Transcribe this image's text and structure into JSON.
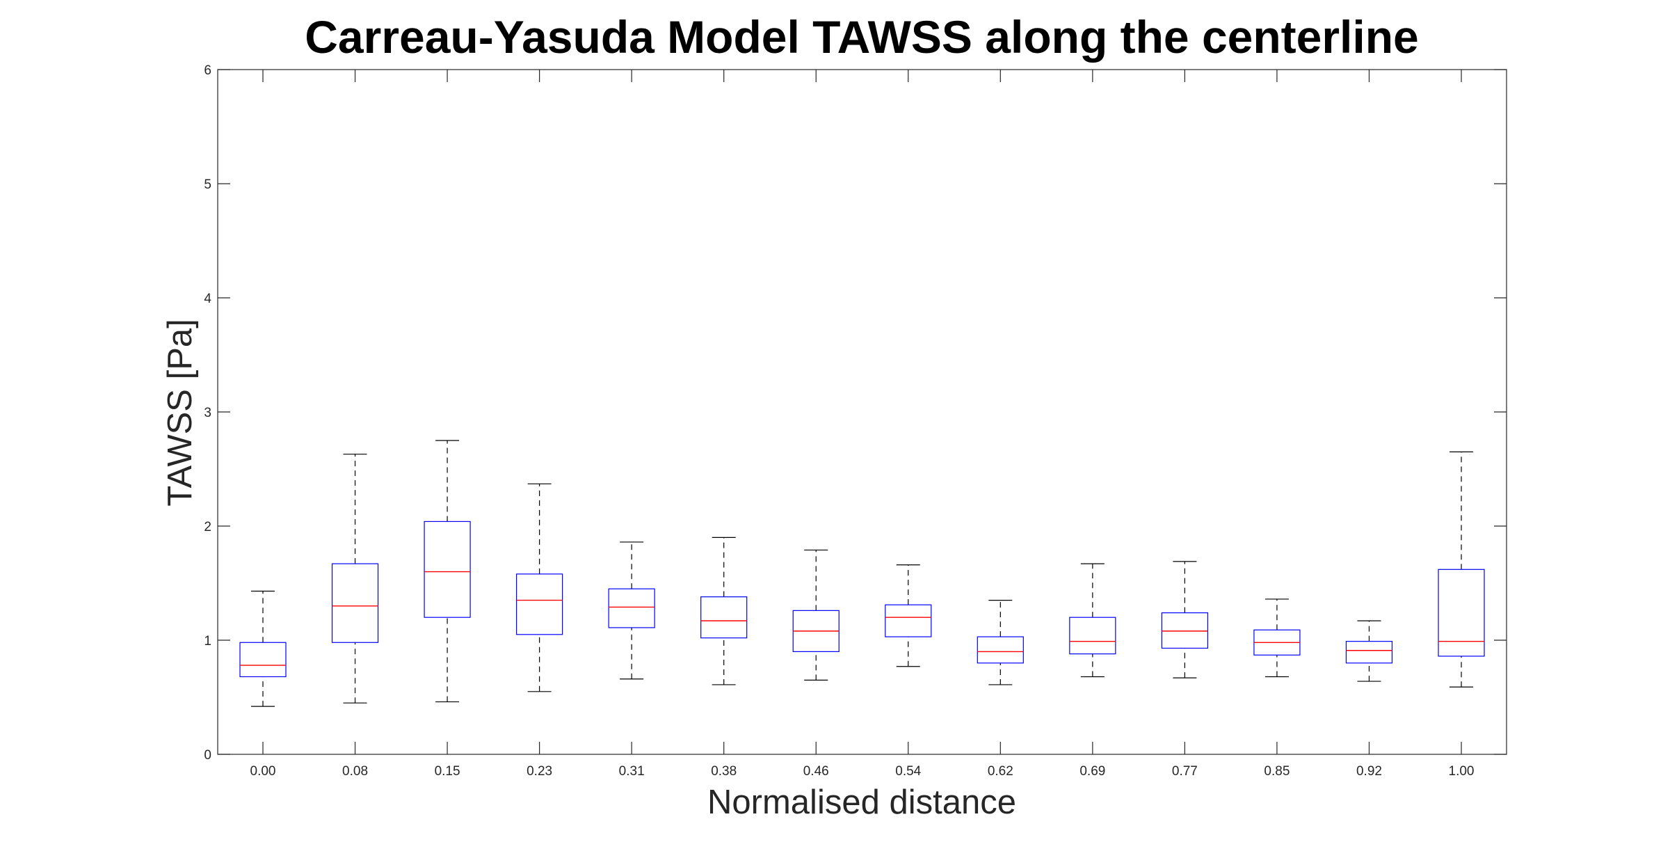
{
  "chart_data": {
    "type": "boxplot",
    "title": "Carreau-Yasuda Model TAWSS along the centerline",
    "xlabel": "Normalised distance",
    "ylabel": "TAWSS [Pa]",
    "ylim": [
      0,
      6
    ],
    "yticks": [
      "0",
      "1",
      "2",
      "3",
      "4",
      "5",
      "6"
    ],
    "categories": [
      "0.00",
      "0.08",
      "0.15",
      "0.23",
      "0.31",
      "0.38",
      "0.46",
      "0.54",
      "0.62",
      "0.69",
      "0.77",
      "0.85",
      "0.92",
      "1.00"
    ],
    "boxes": [
      {
        "min": 0.42,
        "q1": 0.68,
        "median": 0.78,
        "q3": 0.98,
        "max": 1.43
      },
      {
        "min": 0.45,
        "q1": 0.98,
        "median": 1.3,
        "q3": 1.67,
        "max": 2.63
      },
      {
        "min": 0.46,
        "q1": 1.2,
        "median": 1.6,
        "q3": 2.04,
        "max": 2.75
      },
      {
        "min": 0.55,
        "q1": 1.05,
        "median": 1.35,
        "q3": 1.58,
        "max": 2.37
      },
      {
        "min": 0.66,
        "q1": 1.11,
        "median": 1.29,
        "q3": 1.45,
        "max": 1.86
      },
      {
        "min": 0.61,
        "q1": 1.02,
        "median": 1.17,
        "q3": 1.38,
        "max": 1.9
      },
      {
        "min": 0.65,
        "q1": 0.9,
        "median": 1.08,
        "q3": 1.26,
        "max": 1.79
      },
      {
        "min": 0.77,
        "q1": 1.03,
        "median": 1.2,
        "q3": 1.31,
        "max": 1.66
      },
      {
        "min": 0.61,
        "q1": 0.8,
        "median": 0.9,
        "q3": 1.03,
        "max": 1.35
      },
      {
        "min": 0.68,
        "q1": 0.88,
        "median": 0.99,
        "q3": 1.2,
        "max": 1.67
      },
      {
        "min": 0.67,
        "q1": 0.93,
        "median": 1.08,
        "q3": 1.24,
        "max": 1.69
      },
      {
        "min": 0.68,
        "q1": 0.87,
        "median": 0.98,
        "q3": 1.09,
        "max": 1.36
      },
      {
        "min": 0.64,
        "q1": 0.8,
        "median": 0.91,
        "q3": 0.99,
        "max": 1.17
      },
      {
        "min": 0.59,
        "q1": 0.86,
        "median": 0.99,
        "q3": 1.62,
        "max": 2.65
      }
    ],
    "colors": {
      "box": "#0000ff",
      "median": "#ff0000",
      "whisker": "#000000",
      "axis": "#262626"
    },
    "grid": false,
    "legend": "none"
  }
}
